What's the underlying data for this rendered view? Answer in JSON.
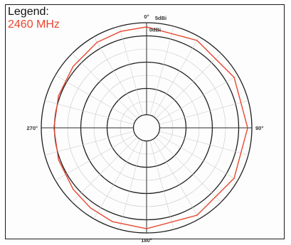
{
  "chart_data": {
    "type": "polar",
    "legend": {
      "title": "Legend:",
      "entries": [
        {
          "name": "2460 MHz",
          "color": "#e8452e"
        }
      ],
      "placement": "top-left"
    },
    "angle_labels": [
      {
        "deg": 0,
        "label": "0°"
      },
      {
        "deg": 90,
        "label": "90°"
      },
      {
        "deg": 180,
        "label": "180°"
      },
      {
        "deg": 270,
        "label": "270°"
      }
    ],
    "radial_labels": [
      "5dBi",
      "0dBi"
    ],
    "series": [
      {
        "name": "2460 MHz",
        "color": "#e8452e",
        "points": [
          [
            0,
            0.96
          ],
          [
            30,
            0.96
          ],
          [
            60,
            0.96
          ],
          [
            90,
            0.96
          ],
          [
            120,
            0.96
          ],
          [
            150,
            0.96
          ],
          [
            180,
            0.96
          ],
          [
            200,
            0.95
          ],
          [
            215,
            0.93
          ],
          [
            230,
            0.91
          ],
          [
            250,
            0.89
          ],
          [
            270,
            0.88
          ],
          [
            290,
            0.89
          ],
          [
            310,
            0.91
          ],
          [
            330,
            0.94
          ],
          [
            345,
            0.95
          ],
          [
            360,
            0.96
          ]
        ]
      }
    ],
    "rings": 8,
    "spokes_deg": 15,
    "grid": true
  }
}
